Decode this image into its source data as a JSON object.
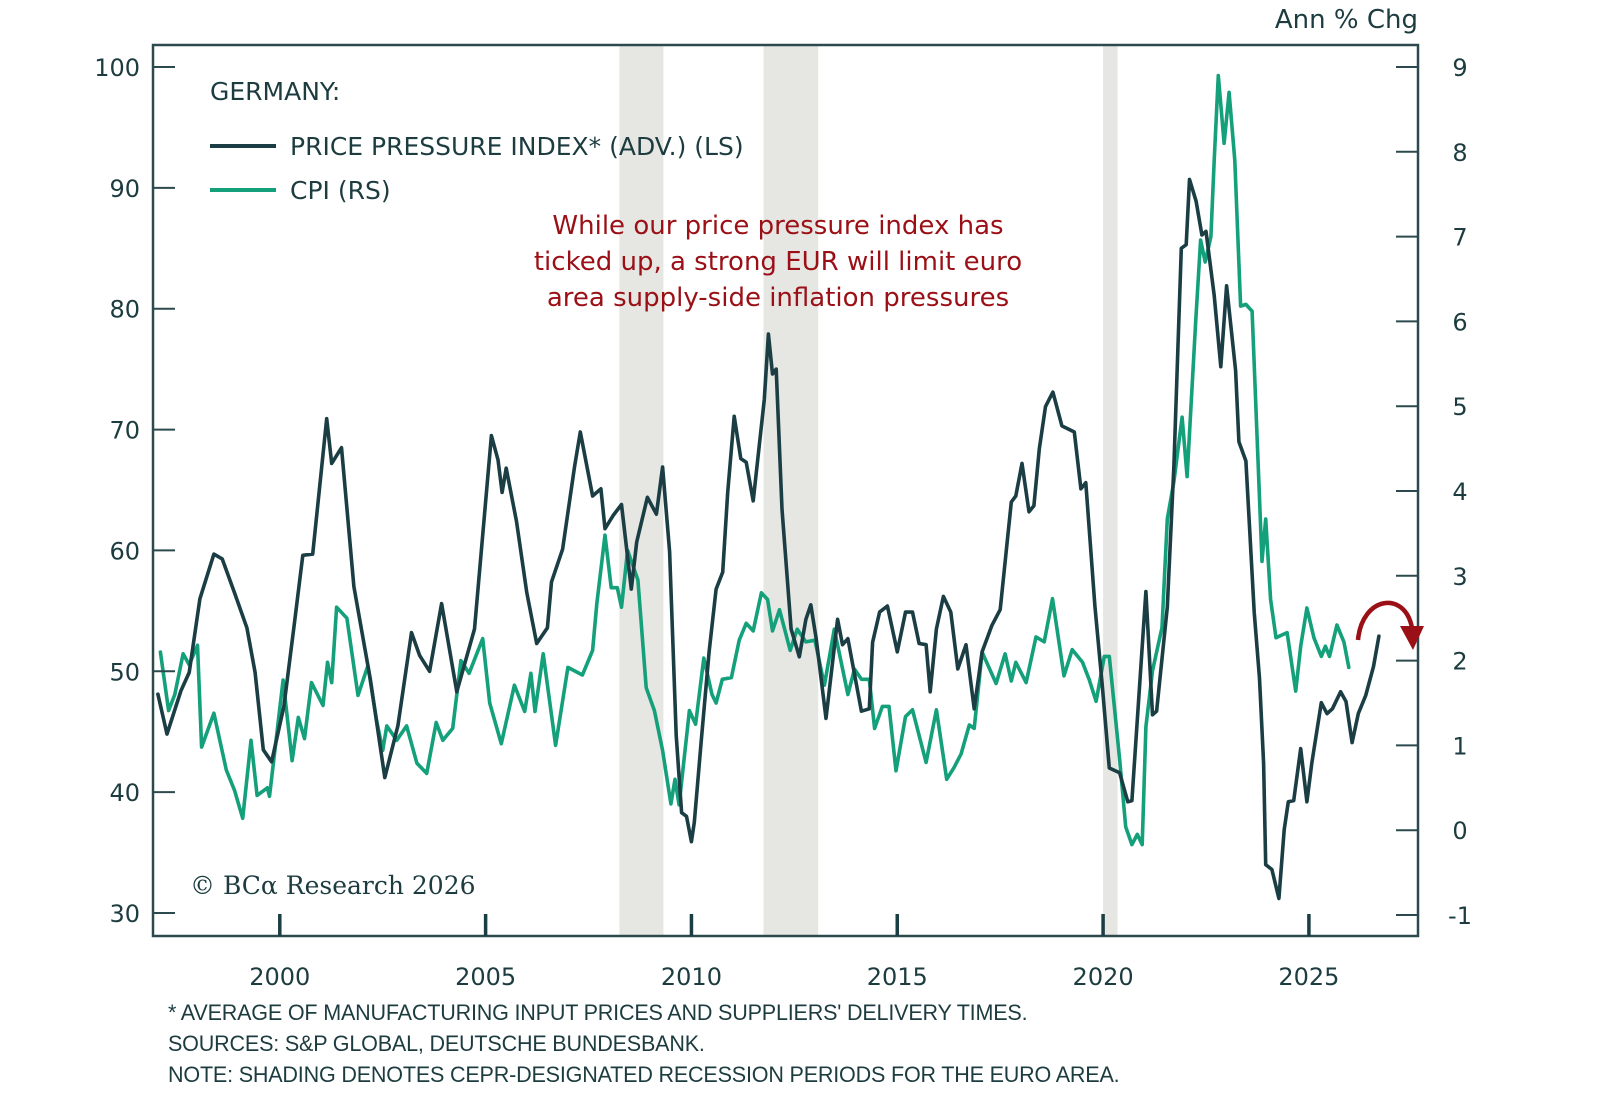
{
  "chart_data": {
    "type": "line",
    "title": "GERMANY:",
    "right_axis_title": "Ann % Chg",
    "annotation": [
      "While our price pressure index has",
      "ticked up, a strong EUR will limit euro",
      "area supply-side inflation pressures"
    ],
    "copyright": "© BCα Research 2026",
    "x_ticks": [
      "2000",
      "2005",
      "2010",
      "2015",
      "2020",
      "2025"
    ],
    "x_tick_values": [
      2000,
      2005,
      2010,
      2015,
      2020,
      2025
    ],
    "xlim": [
      1996.92,
      2027.65
    ],
    "left_axis": {
      "label": "",
      "ylim": [
        30,
        100
      ],
      "ticks": [
        "100",
        "90",
        "80",
        "70",
        "60",
        "50",
        "40",
        "30"
      ],
      "tick_values": [
        100,
        90,
        80,
        70,
        60,
        50,
        40,
        30
      ]
    },
    "right_axis": {
      "label": "Ann % Chg",
      "ylim": [
        -1,
        9
      ],
      "ticks": [
        "9",
        "8",
        "7",
        "6",
        "5",
        "4",
        "3",
        "2",
        "1",
        "0",
        "-1"
      ],
      "tick_values": [
        9,
        8,
        7,
        6,
        5,
        4,
        3,
        2,
        1,
        0,
        -1
      ]
    },
    "grid": false,
    "legend": {
      "placement": "top-left"
    },
    "recessions": [
      {
        "start": 2008.25,
        "end": 2009.32
      },
      {
        "start": 2011.75,
        "end": 2013.08
      },
      {
        "start": 2020.0,
        "end": 2020.35
      }
    ],
    "series": [
      {
        "name": "PRICE PRESSURE INDEX* (ADV.) (LS)",
        "axis": "left",
        "color": "#1b3d44",
        "x": [
          1997.04,
          1997.26,
          1997.6,
          1997.8,
          1998.06,
          1998.4,
          1998.6,
          1998.9,
          1999.2,
          1999.4,
          1999.6,
          1999.8,
          2000.1,
          2000.36,
          2000.56,
          2000.8,
          2001.14,
          2001.26,
          2001.5,
          2001.8,
          2002.2,
          2002.55,
          2002.87,
          2003.2,
          2003.4,
          2003.64,
          2003.93,
          2004.3,
          2004.73,
          2005.14,
          2005.3,
          2005.4,
          2005.5,
          2005.75,
          2006.0,
          2006.24,
          2006.5,
          2006.6,
          2006.87,
          2007.16,
          2007.3,
          2007.6,
          2007.8,
          2007.9,
          2008.1,
          2008.3,
          2008.54,
          2008.67,
          2008.93,
          2009.15,
          2009.3,
          2009.47,
          2009.63,
          2009.76,
          2009.88,
          2010.0,
          2010.07,
          2010.24,
          2010.43,
          2010.6,
          2010.76,
          2010.88,
          2011.04,
          2011.2,
          2011.33,
          2011.5,
          2011.77,
          2011.87,
          2011.97,
          2012.06,
          2012.2,
          2012.42,
          2012.62,
          2012.78,
          2012.9,
          2013.03,
          2013.27,
          2013.55,
          2013.67,
          2013.8,
          2014.13,
          2014.32,
          2014.4,
          2014.57,
          2014.76,
          2015.0,
          2015.2,
          2015.37,
          2015.53,
          2015.7,
          2015.8,
          2015.95,
          2016.12,
          2016.3,
          2016.47,
          2016.67,
          2016.87,
          2017.06,
          2017.3,
          2017.5,
          2017.77,
          2017.88,
          2018.03,
          2018.2,
          2018.32,
          2018.45,
          2018.6,
          2018.78,
          2019.0,
          2019.3,
          2019.46,
          2019.58,
          2019.8,
          2019.98,
          2020.15,
          2020.4,
          2020.6,
          2020.7,
          2021.04,
          2021.2,
          2021.3,
          2021.56,
          2021.72,
          2021.9,
          2022.02,
          2022.1,
          2022.26,
          2022.4,
          2022.5,
          2022.7,
          2022.86,
          2023.0,
          2023.22,
          2023.3,
          2023.47,
          2023.67,
          2023.8,
          2023.9,
          2023.95,
          2024.1,
          2024.27,
          2024.4,
          2024.5,
          2024.63,
          2024.8,
          2024.95,
          2025.07,
          2025.3,
          2025.44,
          2025.57,
          2025.77,
          2025.9,
          2026.05,
          2026.2,
          2026.38,
          2026.57,
          2026.7
        ],
        "values": [
          48.1,
          44.8,
          48.4,
          49.9,
          56.0,
          59.7,
          59.3,
          56.5,
          53.6,
          49.9,
          43.5,
          42.5,
          47.1,
          54.1,
          59.6,
          59.7,
          70.9,
          67.2,
          68.5,
          57.0,
          49.3,
          41.2,
          45.5,
          53.2,
          51.3,
          50.0,
          55.6,
          48.3,
          53.5,
          69.5,
          67.5,
          64.8,
          66.8,
          62.4,
          56.5,
          52.3,
          53.6,
          57.4,
          60.1,
          66.9,
          69.8,
          64.5,
          65.1,
          61.8,
          62.9,
          63.8,
          56.8,
          60.7,
          64.4,
          63.0,
          66.9,
          59.9,
          44.7,
          38.3,
          38.0,
          35.9,
          37.5,
          44.3,
          51.6,
          56.8,
          58.2,
          64.8,
          71.1,
          67.6,
          67.3,
          64.1,
          72.5,
          77.9,
          74.6,
          75.0,
          63.4,
          53.5,
          51.2,
          54.3,
          55.5,
          52.7,
          46.1,
          54.3,
          52.2,
          52.7,
          46.7,
          46.9,
          52.4,
          54.9,
          55.4,
          51.6,
          54.9,
          54.9,
          52.3,
          52.2,
          48.3,
          53.5,
          56.2,
          54.9,
          50.2,
          52.2,
          46.9,
          51.6,
          53.8,
          55.1,
          64.0,
          64.5,
          67.2,
          63.2,
          63.7,
          68.4,
          71.9,
          73.1,
          70.3,
          69.8,
          65.1,
          65.6,
          55.4,
          48.8,
          42.0,
          41.6,
          39.2,
          39.3,
          56.6,
          46.4,
          46.7,
          55.3,
          67.0,
          85.0,
          85.3,
          90.7,
          88.9,
          86.1,
          86.4,
          81.1,
          75.2,
          81.9,
          74.9,
          69.0,
          67.4,
          54.9,
          49.4,
          42.4,
          34.0,
          33.6,
          31.2,
          36.9,
          39.2,
          39.3,
          43.6,
          39.2,
          42.4,
          47.4,
          46.5,
          46.9,
          48.3,
          47.5,
          44.1,
          46.5,
          48.0,
          50.4,
          52.9
        ]
      },
      {
        "name": "CPI (RS)",
        "axis": "right",
        "color": "#13a07a",
        "x": [
          1997.1,
          1997.3,
          1997.45,
          1997.65,
          1997.8,
          1998.0,
          1998.1,
          1998.4,
          1998.7,
          1998.9,
          1999.1,
          1999.3,
          1999.45,
          1999.7,
          1999.75,
          2000.08,
          2000.3,
          2000.45,
          2000.6,
          2000.77,
          2001.05,
          2001.16,
          2001.26,
          2001.38,
          2001.63,
          2001.9,
          2002.14,
          2002.35,
          2002.5,
          2002.6,
          2002.84,
          2003.08,
          2003.33,
          2003.57,
          2003.8,
          2003.96,
          2004.2,
          2004.4,
          2004.6,
          2004.93,
          2005.1,
          2005.38,
          2005.7,
          2005.95,
          2006.1,
          2006.2,
          2006.4,
          2006.7,
          2007.0,
          2007.35,
          2007.6,
          2007.7,
          2007.9,
          2008.05,
          2008.2,
          2008.3,
          2008.45,
          2008.7,
          2008.9,
          2009.1,
          2009.3,
          2009.5,
          2009.6,
          2009.7,
          2009.95,
          2010.1,
          2010.3,
          2010.5,
          2010.6,
          2010.75,
          2010.97,
          2011.16,
          2011.33,
          2011.5,
          2011.7,
          2011.85,
          2011.97,
          2012.14,
          2012.4,
          2012.57,
          2012.78,
          2013.0,
          2013.23,
          2013.47,
          2013.8,
          2013.96,
          2014.13,
          2014.32,
          2014.45,
          2014.64,
          2014.8,
          2014.97,
          2015.2,
          2015.37,
          2015.7,
          2015.95,
          2016.2,
          2016.38,
          2016.55,
          2016.75,
          2016.87,
          2017.06,
          2017.4,
          2017.62,
          2017.77,
          2017.88,
          2018.13,
          2018.37,
          2018.57,
          2018.77,
          2019.05,
          2019.25,
          2019.5,
          2019.66,
          2019.83,
          2020.03,
          2020.15,
          2020.4,
          2020.55,
          2020.7,
          2020.83,
          2020.95,
          2021.04,
          2021.2,
          2021.43,
          2021.56,
          2021.72,
          2021.92,
          2022.04,
          2022.25,
          2022.37,
          2022.48,
          2022.62,
          2022.7,
          2022.8,
          2022.94,
          2023.06,
          2023.2,
          2023.34,
          2023.47,
          2023.62,
          2023.86,
          2023.95,
          2024.07,
          2024.2,
          2024.47,
          2024.68,
          2024.8,
          2024.95,
          2025.12,
          2025.3,
          2025.4,
          2025.5,
          2025.68,
          2025.85,
          2025.97
        ],
        "values": [
          2.1,
          1.41,
          1.6,
          2.08,
          1.95,
          2.18,
          0.98,
          1.38,
          0.71,
          0.47,
          0.14,
          1.06,
          0.41,
          0.5,
          0.4,
          1.77,
          0.82,
          1.33,
          1.08,
          1.74,
          1.47,
          1.98,
          1.74,
          2.63,
          2.5,
          1.59,
          1.94,
          1.3,
          0.94,
          1.23,
          1.06,
          1.23,
          0.79,
          0.67,
          1.27,
          1.06,
          1.2,
          2.0,
          1.85,
          2.26,
          1.5,
          1.02,
          1.71,
          1.4,
          1.85,
          1.4,
          2.08,
          1.0,
          1.92,
          1.83,
          2.12,
          2.67,
          3.48,
          2.86,
          2.86,
          2.63,
          3.3,
          2.95,
          1.68,
          1.41,
          0.94,
          0.31,
          0.6,
          0.3,
          1.41,
          1.25,
          2.03,
          1.6,
          1.5,
          1.78,
          1.8,
          2.24,
          2.44,
          2.35,
          2.8,
          2.72,
          2.35,
          2.6,
          2.12,
          2.37,
          2.22,
          2.24,
          1.71,
          2.37,
          1.6,
          1.9,
          1.78,
          1.78,
          1.2,
          1.46,
          1.46,
          0.7,
          1.34,
          1.42,
          0.8,
          1.42,
          0.6,
          0.74,
          0.9,
          1.24,
          1.2,
          2.1,
          1.73,
          2.08,
          1.76,
          1.98,
          1.74,
          2.28,
          2.22,
          2.73,
          1.82,
          2.13,
          1.98,
          1.78,
          1.52,
          2.05,
          2.05,
          0.84,
          0.04,
          -0.17,
          -0.05,
          -0.17,
          1.22,
          1.88,
          2.39,
          3.67,
          4.11,
          4.87,
          4.17,
          6.0,
          6.96,
          6.7,
          7.0,
          7.9,
          8.9,
          8.1,
          8.7,
          7.9,
          6.18,
          6.2,
          6.12,
          3.17,
          3.67,
          2.72,
          2.27,
          2.33,
          1.64,
          2.17,
          2.62,
          2.27,
          2.05,
          2.17,
          2.05,
          2.42,
          2.22,
          1.92
        ]
      }
    ],
    "arrow": {
      "meaning": "expected downturn",
      "color": "#9a1016"
    }
  },
  "colors": {
    "axis": "#2c4a4e",
    "text": "#1d3c40",
    "recession": "#e6e6e2",
    "annotation": "#9a1016"
  },
  "footnotes": [
    "* AVERAGE OF MANUFACTURING INPUT PRICES AND SUPPLIERS' DELIVERY TIMES.",
    "SOURCES: S&P GLOBAL, DEUTSCHE BUNDESBANK.",
    "NOTE: SHADING DENOTES CEPR-DESIGNATED RECESSION PERIODS FOR THE EURO AREA."
  ]
}
